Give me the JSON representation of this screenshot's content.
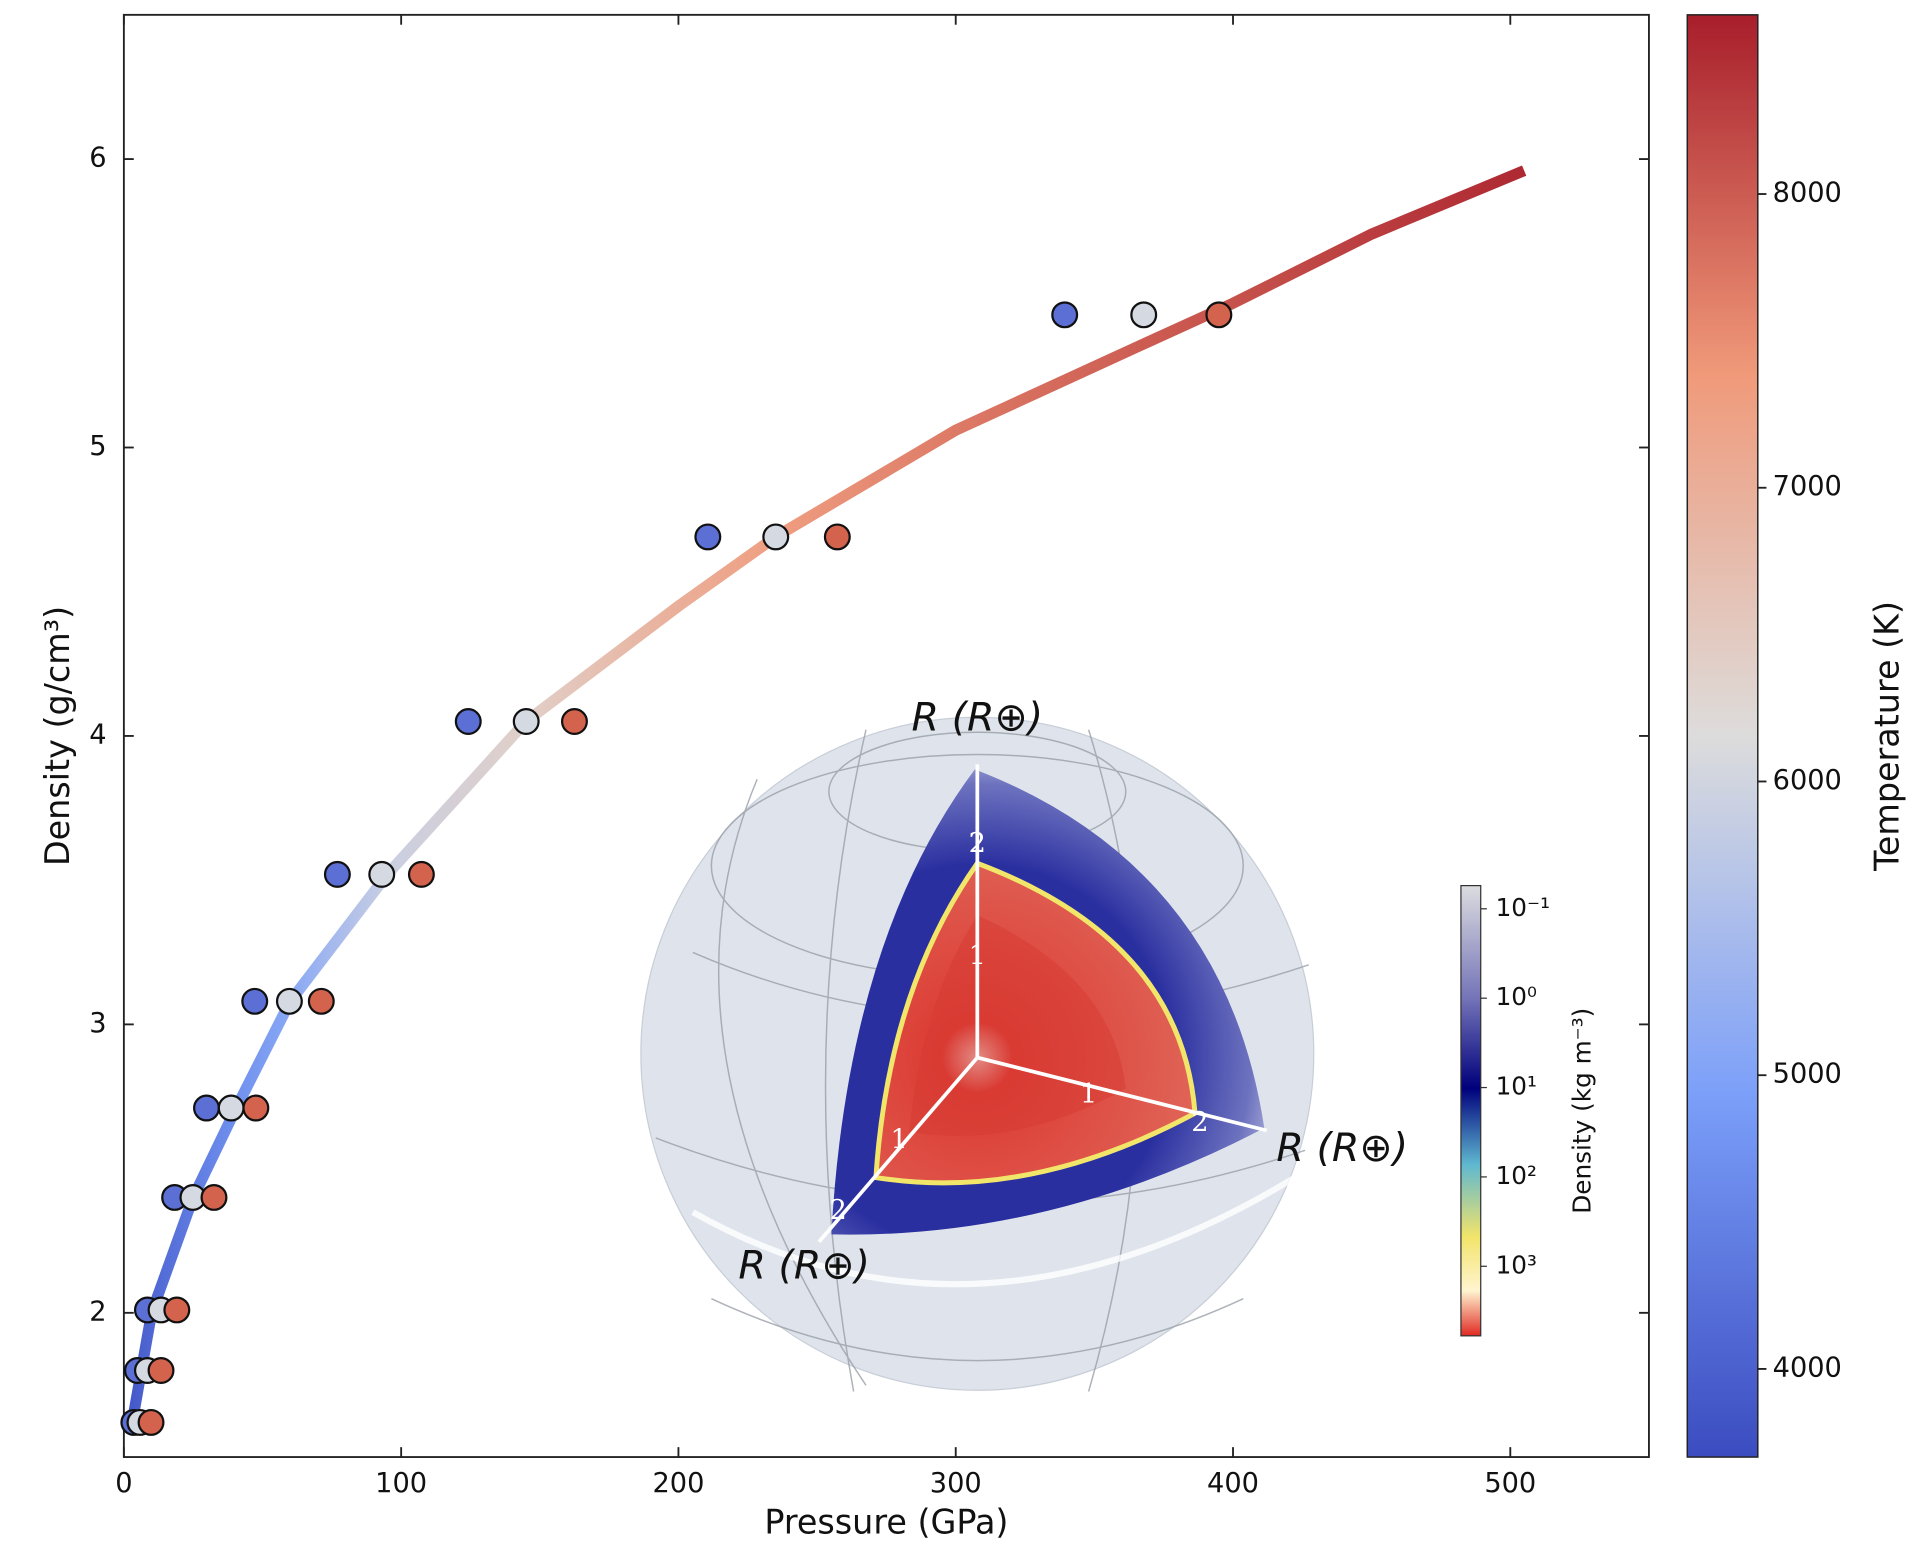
{
  "chart_data": {
    "type": "scatter",
    "xlabel": "Pressure (GPa)",
    "ylabel": "Density (g/cm³)",
    "xlim": [
      0,
      550
    ],
    "ylim": [
      1.5,
      6.5
    ],
    "xticks": [
      0,
      100,
      200,
      300,
      400,
      500
    ],
    "yticks": [
      2,
      3,
      4,
      5,
      6
    ],
    "series": [
      {
        "color": "#5b6fd4",
        "x": [
          3.6,
          4.9,
          8.5,
          18.3,
          29.8,
          47.2,
          77,
          124.2,
          210.6,
          339.3
        ],
        "values": [
          1.62,
          1.8,
          2.01,
          2.4,
          2.71,
          3.08,
          3.52,
          4.05,
          4.69,
          5.46
        ]
      },
      {
        "color": "#d5dae2",
        "x": [
          5.8,
          8.5,
          13.4,
          24.9,
          38.7,
          59.7,
          93,
          145.1,
          235.1,
          367.8
        ],
        "values": [
          1.62,
          1.8,
          2.01,
          2.4,
          2.71,
          3.08,
          3.52,
          4.05,
          4.69,
          5.46
        ]
      },
      {
        "color": "#d4634e",
        "x": [
          9.8,
          13.4,
          19.1,
          32.5,
          47.6,
          71.2,
          107.3,
          162.5,
          257.3,
          394.9
        ],
        "values": [
          1.62,
          1.8,
          2.01,
          2.4,
          2.71,
          3.08,
          3.52,
          4.05,
          4.69,
          5.46
        ]
      }
    ],
    "line": {
      "x": [
        3,
        10,
        25,
        40,
        60,
        95,
        145,
        200,
        235,
        300,
        368,
        400,
        450,
        505
      ],
      "values": [
        1.62,
        2.0,
        2.4,
        2.7,
        3.08,
        3.52,
        4.05,
        4.45,
        4.69,
        5.06,
        5.36,
        5.5,
        5.74,
        5.96
      ],
      "temperature": [
        3900,
        4100,
        4400,
        4700,
        5100,
        5900,
        6400,
        7000,
        7300,
        7700,
        8000,
        8100,
        8300,
        8500
      ]
    },
    "colorbar": {
      "label": "Temperature (K)",
      "lim": [
        3700,
        8610
      ],
      "ticks": [
        4000,
        5000,
        6000,
        7000,
        8000
      ],
      "cmap": "coolwarm"
    }
  },
  "inset": {
    "axis_labels": [
      "R (R⊕)",
      "R (R⊕)",
      "R (R⊕)"
    ],
    "axis_ticks": [
      1,
      2
    ],
    "colorbar": {
      "label": "Density  (kg m⁻³)",
      "log": true,
      "lim": [
        6000,
        0.055
      ],
      "ticks": [
        {
          "value": 0.1,
          "label": "10⁻¹"
        },
        {
          "value": 1,
          "label": "10⁰"
        },
        {
          "value": 10,
          "label": "10¹"
        },
        {
          "value": 100,
          "label": "10²"
        },
        {
          "value": 1000,
          "label": "10³"
        }
      ]
    }
  }
}
